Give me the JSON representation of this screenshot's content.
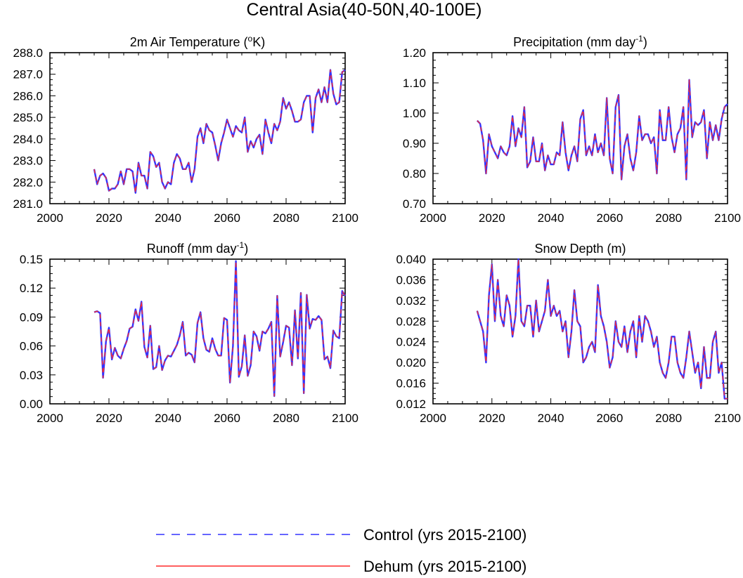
{
  "title": "Central Asia(40-50N,40-100E)",
  "legend": {
    "placement": "bottom-center",
    "entries": [
      {
        "label": "Control (yrs 2015-2100)",
        "color": "#3333ff",
        "style": "dashed"
      },
      {
        "label": "Dehum (yrs 2015-2100)",
        "color": "#ff2a2a",
        "style": "solid"
      }
    ]
  },
  "chart_data": [
    {
      "type": "line",
      "title_main": "2m Air Temperature (",
      "title_sup": "o",
      "title_tail": "K)",
      "xlim": [
        2000,
        2100
      ],
      "ylim": [
        281.0,
        288.0
      ],
      "xticks": [
        "2000",
        "2020",
        "2040",
        "2060",
        "2080",
        "2100"
      ],
      "yticks": [
        "281.0",
        "282.0",
        "283.0",
        "284.0",
        "285.0",
        "286.0",
        "287.0",
        "288.0"
      ],
      "x_start": 2015,
      "series": [
        {
          "name": "Control (yrs 2015-2100)",
          "values": [
            282.6,
            281.9,
            282.3,
            282.4,
            282.2,
            281.6,
            281.7,
            281.7,
            281.9,
            282.5,
            281.9,
            282.6,
            282.6,
            282.5,
            281.5,
            282.9,
            282.3,
            282.3,
            281.7,
            283.4,
            283.2,
            282.7,
            282.9,
            282.0,
            281.7,
            282.0,
            281.9,
            282.9,
            283.3,
            283.1,
            282.6,
            282.6,
            282.9,
            282.0,
            282.6,
            284.1,
            284.5,
            283.8,
            284.7,
            284.4,
            284.3,
            283.7,
            283.0,
            283.8,
            284.3,
            284.9,
            284.5,
            284.1,
            284.6,
            284.4,
            284.3,
            285.0,
            283.4,
            283.9,
            283.6,
            284.0,
            284.2,
            283.3,
            284.9,
            284.3,
            283.8,
            284.7,
            284.4,
            284.8,
            285.9,
            285.4,
            285.7,
            285.3,
            284.8,
            284.8,
            284.9,
            285.7,
            286.0,
            286.0,
            284.3,
            285.9,
            286.3,
            285.7,
            286.4,
            285.7,
            287.2,
            286.1,
            285.6,
            285.7,
            287.1,
            287.2
          ]
        },
        {
          "name": "Dehum (yrs 2015-2100)",
          "values": [
            282.6,
            281.9,
            282.3,
            282.4,
            282.2,
            281.6,
            281.7,
            281.7,
            281.9,
            282.5,
            281.9,
            282.6,
            282.6,
            282.5,
            281.5,
            282.9,
            282.3,
            282.3,
            281.7,
            283.4,
            283.2,
            282.7,
            282.9,
            282.0,
            281.7,
            282.0,
            281.9,
            282.9,
            283.3,
            283.1,
            282.6,
            282.6,
            282.9,
            282.0,
            282.6,
            284.1,
            284.5,
            283.8,
            284.7,
            284.4,
            284.3,
            283.7,
            283.0,
            283.8,
            284.3,
            284.9,
            284.5,
            284.1,
            284.6,
            284.4,
            284.3,
            285.0,
            283.4,
            283.9,
            283.6,
            284.0,
            284.2,
            283.3,
            284.9,
            284.3,
            283.8,
            284.7,
            284.4,
            284.8,
            285.9,
            285.4,
            285.7,
            285.3,
            284.8,
            284.8,
            284.9,
            285.7,
            286.0,
            286.0,
            284.3,
            285.9,
            286.3,
            285.7,
            286.4,
            285.7,
            287.2,
            286.1,
            285.6,
            285.7,
            287.1,
            287.2
          ]
        }
      ]
    },
    {
      "type": "line",
      "title_main": "Precipitation (mm day",
      "title_sup": "-1",
      "title_tail": ")",
      "xlim": [
        2000,
        2100
      ],
      "ylim": [
        0.7,
        1.2
      ],
      "xticks": [
        "2000",
        "2020",
        "2040",
        "2060",
        "2080",
        "2100"
      ],
      "yticks": [
        "0.70",
        "0.80",
        "0.90",
        "1.00",
        "1.10",
        "1.20"
      ],
      "x_start": 2015,
      "series": [
        {
          "name": "Control (yrs 2015-2100)",
          "values": [
            0.975,
            0.965,
            0.91,
            0.8,
            0.93,
            0.89,
            0.87,
            0.85,
            0.89,
            0.87,
            0.86,
            0.89,
            0.99,
            0.89,
            0.95,
            0.92,
            1.02,
            0.82,
            0.84,
            0.92,
            0.84,
            0.84,
            0.9,
            0.81,
            0.86,
            0.83,
            0.83,
            0.87,
            0.86,
            0.97,
            0.87,
            0.81,
            0.86,
            0.89,
            0.84,
            0.98,
            1.01,
            0.86,
            0.89,
            0.86,
            0.93,
            0.87,
            0.9,
            0.86,
            1.05,
            0.85,
            0.8,
            1.02,
            1.06,
            0.78,
            0.89,
            0.93,
            0.85,
            0.81,
            0.87,
            0.99,
            0.91,
            0.93,
            0.93,
            0.9,
            0.92,
            0.8,
            1.01,
            0.91,
            0.91,
            1.02,
            0.92,
            0.87,
            0.93,
            0.95,
            1.02,
            0.78,
            1.11,
            0.92,
            0.97,
            0.96,
            0.97,
            1.01,
            0.85,
            0.97,
            0.91,
            0.96,
            0.91,
            0.98,
            1.02,
            1.03
          ]
        },
        {
          "name": "Dehum (yrs 2015-2100)",
          "values": [
            0.975,
            0.965,
            0.91,
            0.8,
            0.93,
            0.89,
            0.87,
            0.85,
            0.89,
            0.87,
            0.86,
            0.89,
            0.99,
            0.89,
            0.95,
            0.92,
            1.02,
            0.82,
            0.84,
            0.92,
            0.84,
            0.84,
            0.9,
            0.81,
            0.86,
            0.83,
            0.83,
            0.87,
            0.86,
            0.97,
            0.87,
            0.81,
            0.86,
            0.89,
            0.84,
            0.98,
            1.01,
            0.86,
            0.89,
            0.86,
            0.93,
            0.87,
            0.9,
            0.86,
            1.05,
            0.85,
            0.8,
            1.02,
            1.06,
            0.78,
            0.89,
            0.93,
            0.85,
            0.81,
            0.87,
            0.99,
            0.91,
            0.93,
            0.93,
            0.9,
            0.92,
            0.8,
            1.01,
            0.91,
            0.91,
            1.02,
            0.92,
            0.87,
            0.93,
            0.95,
            1.02,
            0.78,
            1.11,
            0.92,
            0.97,
            0.96,
            0.97,
            1.01,
            0.85,
            0.97,
            0.91,
            0.96,
            0.91,
            0.98,
            1.02,
            1.03
          ]
        }
      ]
    },
    {
      "type": "line",
      "title_main": "Runoff (mm day",
      "title_sup": "-1",
      "title_tail": ")",
      "xlim": [
        2000,
        2100
      ],
      "ylim": [
        0.0,
        0.15
      ],
      "xticks": [
        "2000",
        "2020",
        "2040",
        "2060",
        "2080",
        "2100"
      ],
      "yticks": [
        "0.00",
        "0.03",
        "0.06",
        "0.09",
        "0.12",
        "0.15"
      ],
      "x_start": 2015,
      "series": [
        {
          "name": "Control (yrs 2015-2100)",
          "values": [
            0.095,
            0.096,
            0.094,
            0.027,
            0.065,
            0.079,
            0.046,
            0.058,
            0.05,
            0.047,
            0.057,
            0.065,
            0.078,
            0.08,
            0.098,
            0.086,
            0.106,
            0.059,
            0.048,
            0.081,
            0.036,
            0.038,
            0.06,
            0.035,
            0.045,
            0.05,
            0.049,
            0.055,
            0.061,
            0.071,
            0.085,
            0.05,
            0.053,
            0.051,
            0.043,
            0.084,
            0.095,
            0.068,
            0.056,
            0.054,
            0.068,
            0.057,
            0.05,
            0.05,
            0.089,
            0.087,
            0.022,
            0.06,
            0.148,
            0.028,
            0.039,
            0.071,
            0.029,
            0.04,
            0.075,
            0.07,
            0.055,
            0.075,
            0.073,
            0.078,
            0.085,
            0.008,
            0.112,
            0.049,
            0.064,
            0.081,
            0.079,
            0.04,
            0.097,
            0.047,
            0.115,
            0.011,
            0.113,
            0.078,
            0.088,
            0.087,
            0.091,
            0.087,
            0.046,
            0.049,
            0.037,
            0.076,
            0.07,
            0.068,
            0.117,
            0.112
          ]
        },
        {
          "name": "Dehum (yrs 2015-2100)",
          "values": [
            0.095,
            0.096,
            0.094,
            0.027,
            0.065,
            0.079,
            0.046,
            0.058,
            0.05,
            0.047,
            0.057,
            0.065,
            0.078,
            0.08,
            0.098,
            0.086,
            0.106,
            0.059,
            0.048,
            0.081,
            0.036,
            0.038,
            0.06,
            0.035,
            0.045,
            0.05,
            0.049,
            0.055,
            0.061,
            0.071,
            0.085,
            0.05,
            0.053,
            0.051,
            0.043,
            0.084,
            0.095,
            0.068,
            0.056,
            0.054,
            0.068,
            0.057,
            0.05,
            0.05,
            0.089,
            0.087,
            0.022,
            0.06,
            0.148,
            0.028,
            0.039,
            0.071,
            0.029,
            0.04,
            0.075,
            0.07,
            0.055,
            0.075,
            0.073,
            0.078,
            0.085,
            0.008,
            0.112,
            0.049,
            0.064,
            0.081,
            0.079,
            0.04,
            0.097,
            0.047,
            0.115,
            0.011,
            0.113,
            0.078,
            0.088,
            0.087,
            0.091,
            0.087,
            0.046,
            0.049,
            0.037,
            0.076,
            0.07,
            0.068,
            0.117,
            0.112
          ]
        }
      ]
    },
    {
      "type": "line",
      "title_main": "Snow Depth (m)",
      "title_sup": "",
      "title_tail": "",
      "xlim": [
        2000,
        2100
      ],
      "ylim": [
        0.012,
        0.04
      ],
      "xticks": [
        "2000",
        "2020",
        "2040",
        "2060",
        "2080",
        "2100"
      ],
      "yticks": [
        "0.012",
        "0.016",
        "0.020",
        "0.024",
        "0.028",
        "0.032",
        "0.036",
        "0.040"
      ],
      "x_start": 2015,
      "series": [
        {
          "name": "Control (yrs 2015-2100)",
          "values": [
            0.03,
            0.028,
            0.026,
            0.02,
            0.033,
            0.039,
            0.028,
            0.036,
            0.029,
            0.027,
            0.033,
            0.031,
            0.025,
            0.029,
            0.04,
            0.028,
            0.027,
            0.031,
            0.031,
            0.025,
            0.032,
            0.026,
            0.028,
            0.03,
            0.036,
            0.029,
            0.031,
            0.029,
            0.03,
            0.026,
            0.028,
            0.021,
            0.026,
            0.034,
            0.028,
            0.027,
            0.02,
            0.021,
            0.023,
            0.024,
            0.022,
            0.035,
            0.029,
            0.027,
            0.024,
            0.019,
            0.021,
            0.028,
            0.024,
            0.023,
            0.027,
            0.022,
            0.026,
            0.028,
            0.021,
            0.029,
            0.024,
            0.029,
            0.028,
            0.026,
            0.023,
            0.025,
            0.02,
            0.018,
            0.017,
            0.02,
            0.025,
            0.025,
            0.02,
            0.018,
            0.017,
            0.021,
            0.026,
            0.022,
            0.018,
            0.02,
            0.015,
            0.023,
            0.017,
            0.017,
            0.024,
            0.026,
            0.018,
            0.02,
            0.013,
            0.013
          ]
        },
        {
          "name": "Dehum (yrs 2015-2100)",
          "values": [
            0.03,
            0.028,
            0.026,
            0.02,
            0.033,
            0.039,
            0.028,
            0.036,
            0.029,
            0.027,
            0.033,
            0.031,
            0.025,
            0.029,
            0.04,
            0.028,
            0.027,
            0.031,
            0.031,
            0.025,
            0.032,
            0.026,
            0.028,
            0.03,
            0.036,
            0.029,
            0.031,
            0.029,
            0.03,
            0.026,
            0.028,
            0.021,
            0.026,
            0.034,
            0.028,
            0.027,
            0.02,
            0.021,
            0.023,
            0.024,
            0.022,
            0.035,
            0.029,
            0.027,
            0.024,
            0.019,
            0.021,
            0.028,
            0.024,
            0.023,
            0.027,
            0.022,
            0.026,
            0.028,
            0.021,
            0.029,
            0.024,
            0.029,
            0.028,
            0.026,
            0.023,
            0.025,
            0.02,
            0.018,
            0.017,
            0.02,
            0.025,
            0.025,
            0.02,
            0.018,
            0.017,
            0.021,
            0.026,
            0.022,
            0.018,
            0.02,
            0.015,
            0.023,
            0.017,
            0.017,
            0.024,
            0.026,
            0.018,
            0.02,
            0.013,
            0.013
          ]
        }
      ]
    }
  ]
}
